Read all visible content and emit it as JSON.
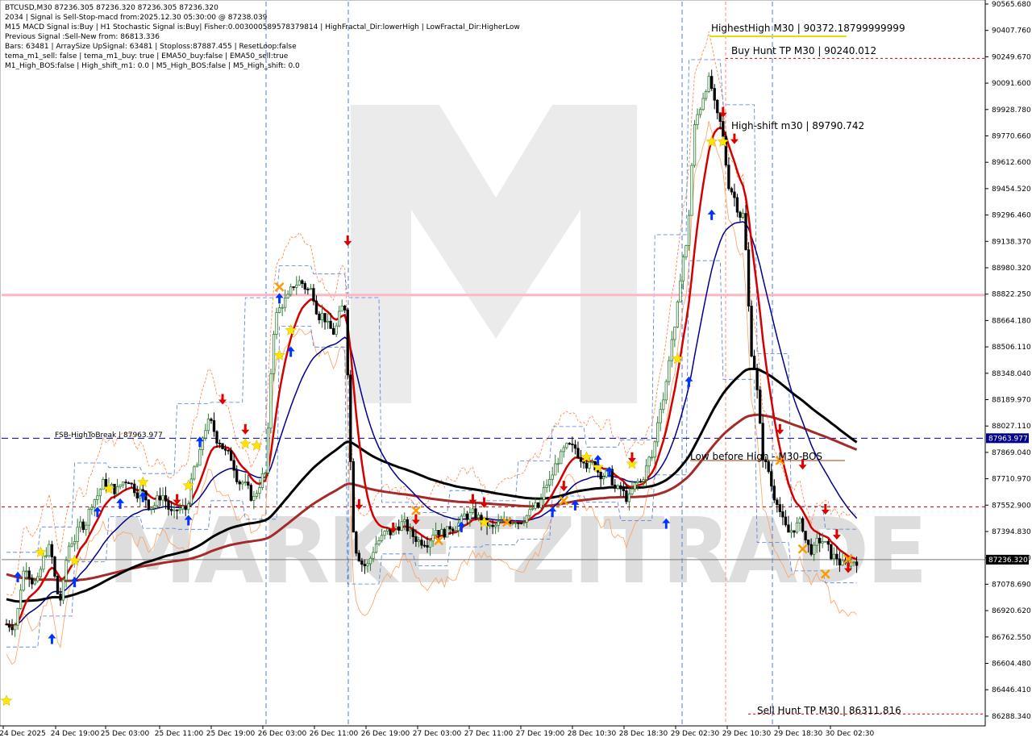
{
  "header": {
    "lines": [
      "BTCUSD,M30  87236.305 87236.320 87236.305 87236.320",
      "2034 | Signal is Sell-Stop-macd from:2025.12.30 05:30:00 @ 87238.039",
      "M15 MACD Signal is:Buy | H1 Stochastic Signal is:Buy| Fisher:0.003000589578379814 | HighFractal_Dir:lowerHigh | LowFractal_Dir:HigherLow",
      "Previous Signal :Sell-New from: 86813.336",
      "Bars: 63481 | ArraySize UpSignal: 63481 | Stoploss:87887.455 | ResetLoop:false",
      "tema_m1_sell: false | tema_m1_buy: true | EMA50_buy:false | EMA50_sell:true",
      "M1_High_BOS:false | High_shift_m1: 0.0 | M5_High_BOS:false | M5_High_shift: 0.0"
    ]
  },
  "annotations": {
    "highest_high": "HighestHigh   M30 | 90372.18799999999",
    "buy_hunt": "Buy Hunt TP M30 | 90240.012",
    "high_shift": "High-shift m30 | 89790.742",
    "fsb": "FSB-HighToBreak | 87963.977",
    "low_before_high": "Low before High - M30-BOS",
    "sell_hunt": "Sell Hunt TP M30 | 86311.816"
  },
  "watermark": "MARKETZITRADE",
  "colors": {
    "background": "#ffffff",
    "bull_candle": "#2e7d32",
    "bear_candle": "#000000",
    "ema_red": "#d40000",
    "ema_darkred": "#a52a2a",
    "ma_black": "#000000",
    "ma_blue": "#00008b",
    "pink_level": "#ffb6c1",
    "fsb_line": "#00008b",
    "red_dashed": "#cc0000",
    "price_tag": "#000000",
    "fsb_tag": "#00008b"
  },
  "chart_data": {
    "type": "candlestick",
    "symbol": "BTCUSD",
    "timeframe": "M30",
    "y_axis_labels": [
      "90565.680",
      "90407.760",
      "90249.670",
      "90091.600",
      "89928.780",
      "89770.660",
      "89612.600",
      "89454.520",
      "89296.460",
      "89138.370",
      "88980.320",
      "88822.250",
      "88664.180",
      "88506.110",
      "88348.040",
      "88189.970",
      "88027.110",
      "87869.040",
      "87710.970",
      "87552.900",
      "87394.830",
      "87236.320",
      "87078.690",
      "86920.620",
      "86762.550",
      "86604.480",
      "86446.410",
      "86288.340"
    ],
    "x_axis_labels": [
      "24 Dec 2025",
      "24 Dec 19:00",
      "25 Dec 03:00",
      "25 Dec 11:00",
      "25 Dec 19:00",
      "26 Dec 03:00",
      "26 Dec 11:00",
      "26 Dec 19:00",
      "27 Dec 03:00",
      "27 Dec 11:00",
      "27 Dec 19:00",
      "28 Dec 10:30",
      "28 Dec 18:30",
      "29 Dec 02:30",
      "29 Dec 10:30",
      "29 Dec 18:30",
      "30 Dec 02:30"
    ],
    "ylim": [
      86250,
      90580
    ],
    "current_price": 87236.32,
    "current_price_label": "87236.320",
    "fsb_price_label": "87963.977",
    "levels": {
      "highest_high": 90372.188,
      "buy_hunt_tp": 90240.012,
      "high_shift": 89790.742,
      "fsb_high_to_break": 87963.977,
      "sell_hunt_tp": 86311.816,
      "pink_level": 88822.25,
      "red_dashed_mid": 87552.9,
      "low_before_high": 87830
    },
    "close_path": [
      86850,
      87200,
      87100,
      87300,
      87000,
      87350,
      87450,
      87600,
      87700,
      87650,
      87720,
      87640,
      87560,
      87620,
      87500,
      87540,
      87800,
      88050,
      87950,
      87850,
      87700,
      87600,
      87750,
      88700,
      88800,
      88900,
      88850,
      88700,
      88600,
      88750,
      87300,
      87200,
      87350,
      87400,
      87450,
      87380,
      87350,
      87420,
      87400,
      87450,
      87500,
      87480,
      87420,
      87450,
      87480,
      87500,
      87550,
      87700,
      87850,
      87900,
      87850,
      87800,
      87750,
      87650,
      87600,
      87700,
      87850,
      88200,
      88600,
      89100,
      89900,
      90100,
      89850,
      89450,
      89300,
      88400,
      87800,
      87600,
      87400,
      87450,
      87300,
      87350,
      87250,
      87200,
      87236
    ],
    "events": [
      {
        "kind": "star",
        "i": 3,
        "v": 87280
      },
      {
        "kind": "star",
        "i": 6,
        "v": 87230
      },
      {
        "kind": "star",
        "i": 9,
        "v": 87660
      },
      {
        "kind": "star",
        "i": 12,
        "v": 87700
      },
      {
        "kind": "star",
        "i": 16,
        "v": 87680
      },
      {
        "kind": "star",
        "i": 0,
        "v": 86390
      },
      {
        "kind": "star",
        "i": 21,
        "v": 87930
      },
      {
        "kind": "star",
        "i": 22,
        "v": 87920
      },
      {
        "kind": "star",
        "i": 24,
        "v": 88460
      },
      {
        "kind": "star",
        "i": 25,
        "v": 88610
      },
      {
        "kind": "star",
        "i": 42,
        "v": 87460
      },
      {
        "kind": "star",
        "i": 51,
        "v": 87850
      },
      {
        "kind": "star",
        "i": 52,
        "v": 87790
      },
      {
        "kind": "star",
        "i": 55,
        "v": 87810
      },
      {
        "kind": "star",
        "i": 59,
        "v": 88440
      },
      {
        "kind": "star",
        "i": 62,
        "v": 89740
      },
      {
        "kind": "star",
        "i": 63,
        "v": 89740
      },
      {
        "kind": "xmark",
        "i": 24,
        "v": 88870
      },
      {
        "kind": "xmark",
        "i": 36,
        "v": 87530
      },
      {
        "kind": "xmark",
        "i": 38,
        "v": 87350
      },
      {
        "kind": "xmark",
        "i": 44,
        "v": 87460
      },
      {
        "kind": "xmark",
        "i": 49,
        "v": 87590
      },
      {
        "kind": "xmark",
        "i": 68,
        "v": 87830
      },
      {
        "kind": "xmark",
        "i": 70,
        "v": 87300
      },
      {
        "kind": "xmark",
        "i": 72,
        "v": 87150
      },
      {
        "kind": "xmark",
        "i": 74,
        "v": 87240
      },
      {
        "kind": "up",
        "i": 1,
        "v": 87130
      },
      {
        "kind": "up",
        "i": 4,
        "v": 86760
      },
      {
        "kind": "up",
        "i": 6,
        "v": 87100
      },
      {
        "kind": "up",
        "i": 8,
        "v": 87520
      },
      {
        "kind": "up",
        "i": 10,
        "v": 87570
      },
      {
        "kind": "up",
        "i": 12,
        "v": 87610
      },
      {
        "kind": "up",
        "i": 16,
        "v": 87470
      },
      {
        "kind": "up",
        "i": 17,
        "v": 87940
      },
      {
        "kind": "up",
        "i": 24,
        "v": 88800
      },
      {
        "kind": "up",
        "i": 25,
        "v": 88480
      },
      {
        "kind": "up",
        "i": 40,
        "v": 87430
      },
      {
        "kind": "up",
        "i": 48,
        "v": 87520
      },
      {
        "kind": "up",
        "i": 50,
        "v": 87560
      },
      {
        "kind": "up",
        "i": 52,
        "v": 87830
      },
      {
        "kind": "up",
        "i": 53,
        "v": 87760
      },
      {
        "kind": "up",
        "i": 58,
        "v": 87450
      },
      {
        "kind": "up",
        "i": 60,
        "v": 88300
      },
      {
        "kind": "up",
        "i": 62,
        "v": 89300
      },
      {
        "kind": "down",
        "i": 15,
        "v": 87600
      },
      {
        "kind": "down",
        "i": 19,
        "v": 88200
      },
      {
        "kind": "down",
        "i": 21,
        "v": 88020
      },
      {
        "kind": "down",
        "i": 30,
        "v": 89150
      },
      {
        "kind": "down",
        "i": 31,
        "v": 87570
      },
      {
        "kind": "down",
        "i": 34,
        "v": 87430
      },
      {
        "kind": "down",
        "i": 36,
        "v": 87480
      },
      {
        "kind": "down",
        "i": 41,
        "v": 87600
      },
      {
        "kind": "down",
        "i": 42,
        "v": 87580
      },
      {
        "kind": "down",
        "i": 49,
        "v": 87680
      },
      {
        "kind": "down",
        "i": 55,
        "v": 87850
      },
      {
        "kind": "down",
        "i": 63,
        "v": 89920
      },
      {
        "kind": "down",
        "i": 64,
        "v": 89760
      },
      {
        "kind": "down",
        "i": 68,
        "v": 88020
      },
      {
        "kind": "down",
        "i": 70,
        "v": 87810
      },
      {
        "kind": "down",
        "i": 72,
        "v": 87540
      },
      {
        "kind": "down",
        "i": 73,
        "v": 87390
      },
      {
        "kind": "down",
        "i": 74,
        "v": 87190
      }
    ]
  }
}
